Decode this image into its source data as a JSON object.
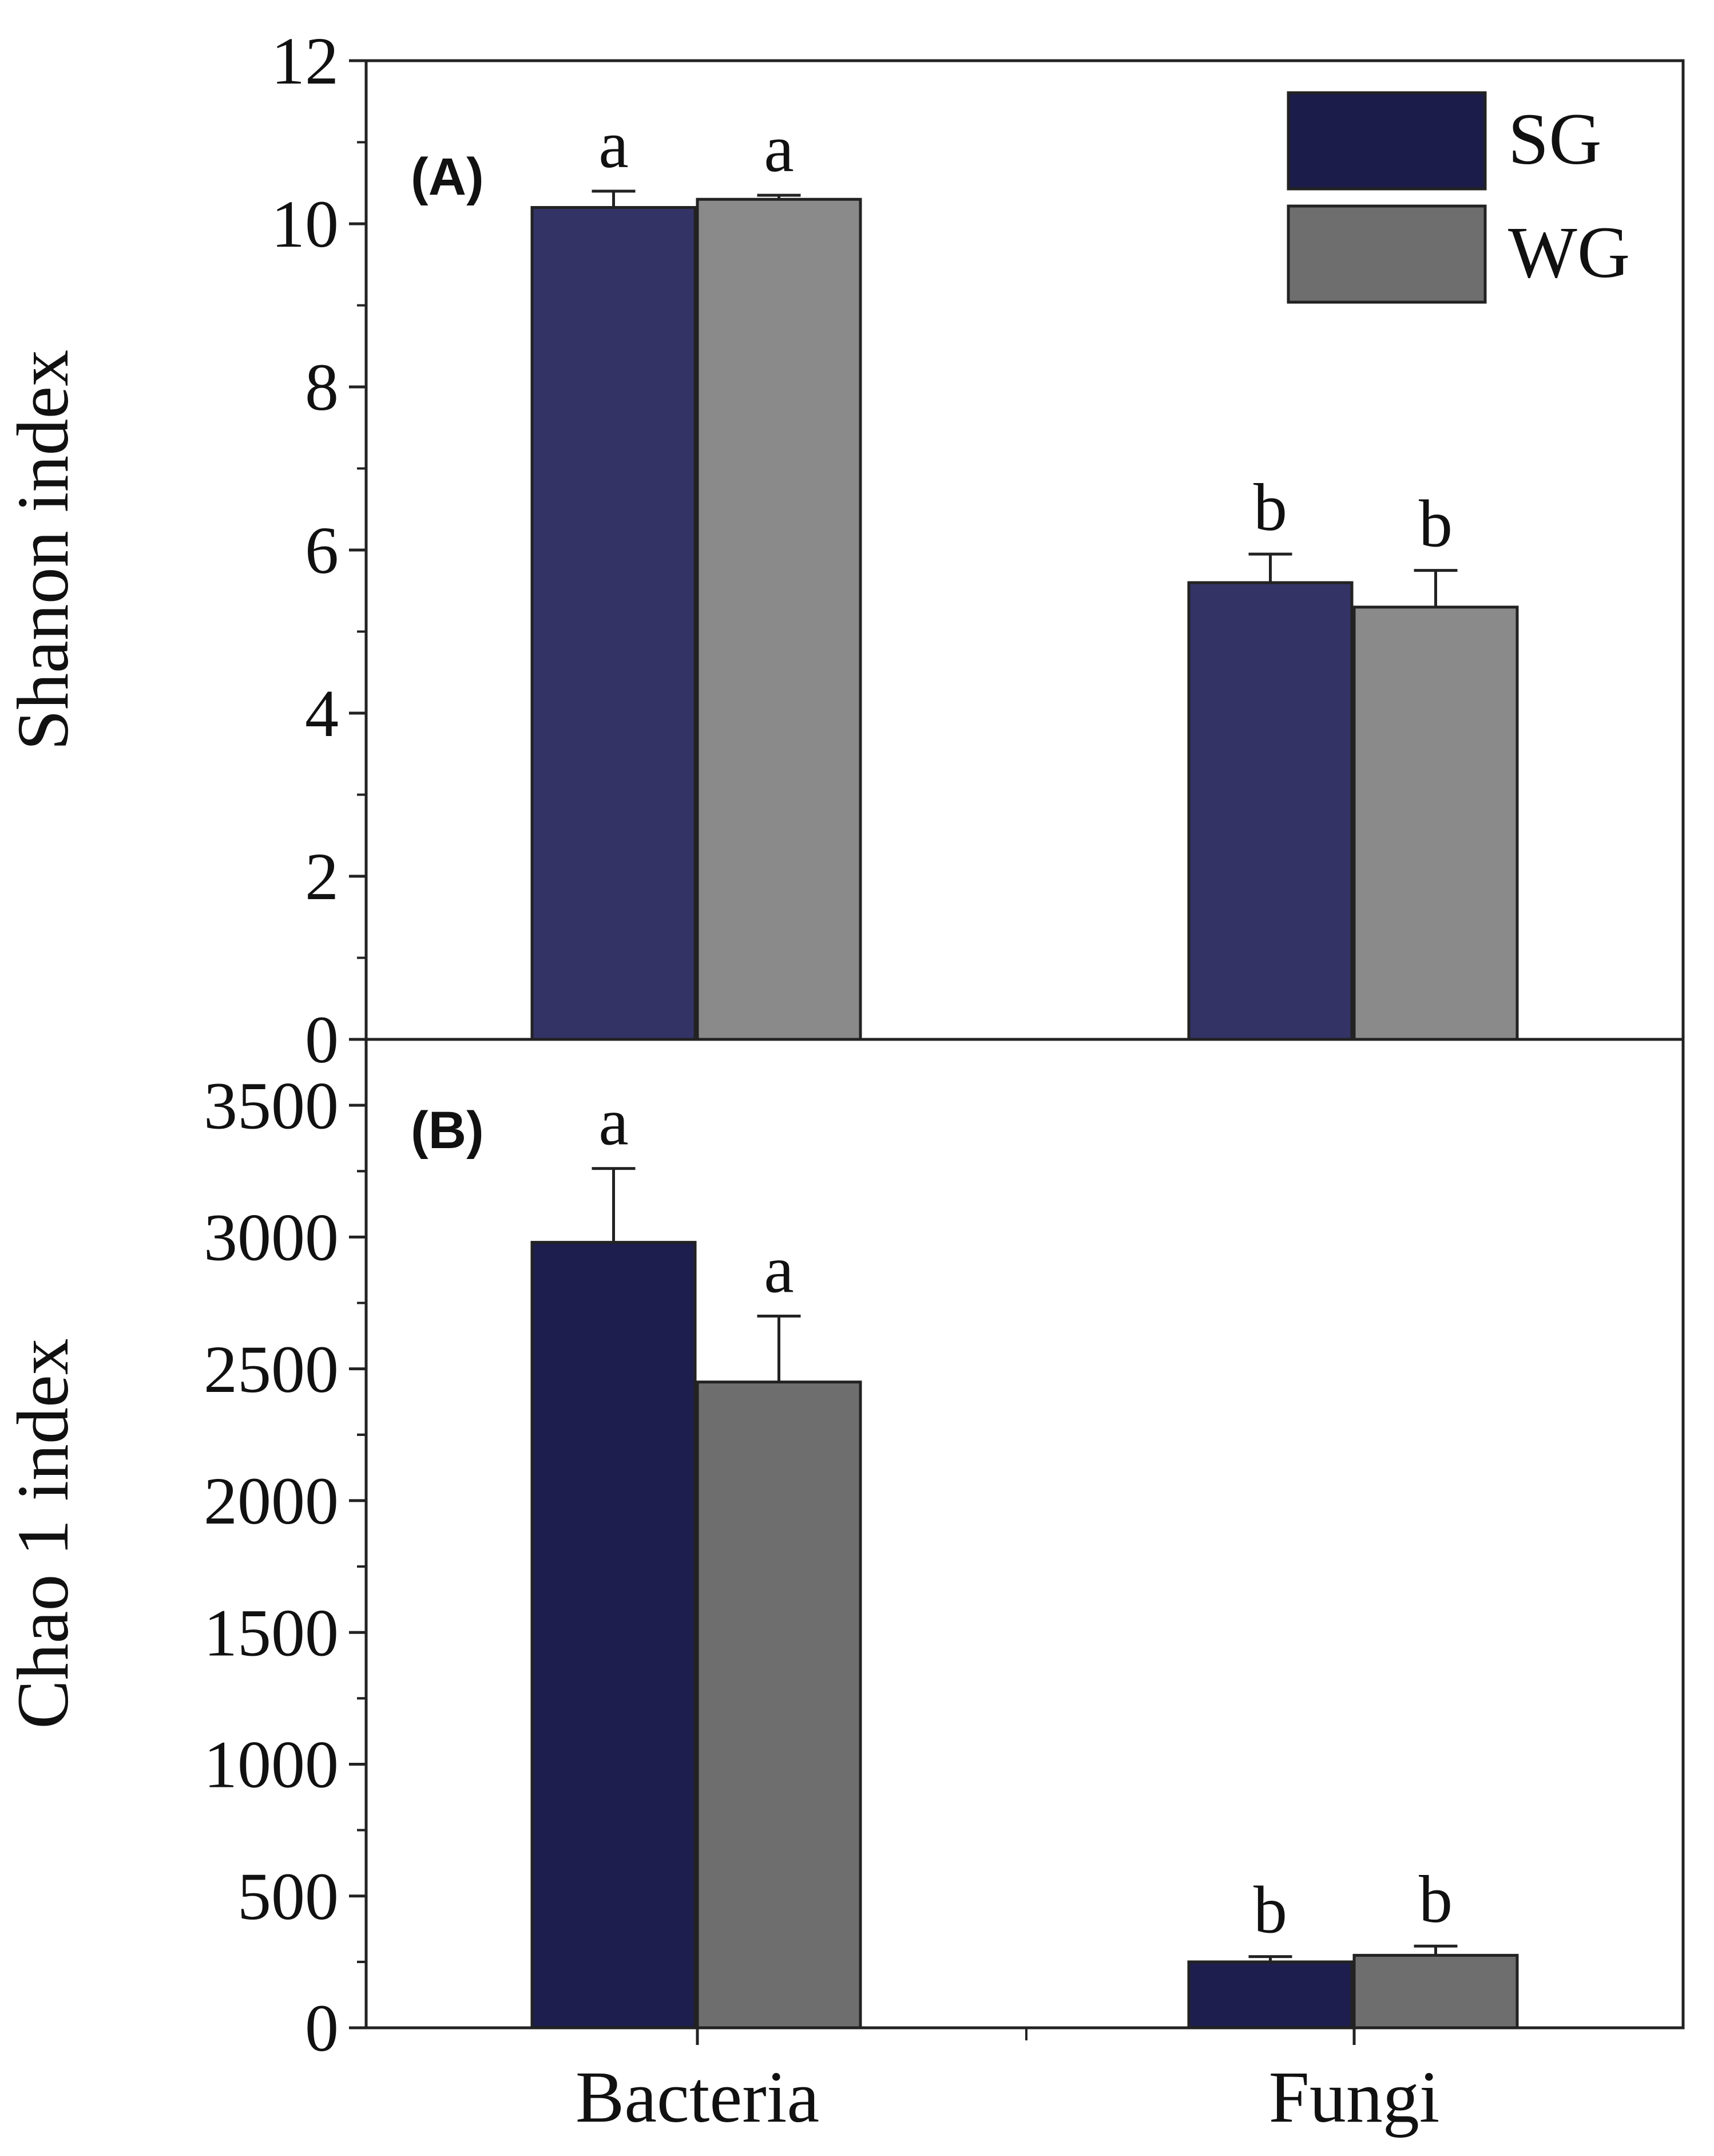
{
  "chart_data": [
    {
      "panel": "A",
      "panel_label": "(A)",
      "type": "bar",
      "ylabel": "Shanon index",
      "ylim": [
        0,
        12
      ],
      "yticks": [
        0,
        2,
        4,
        6,
        8,
        10,
        12
      ],
      "categories": [
        "Bacteria",
        "Fungi"
      ],
      "series": [
        {
          "name": "SG",
          "color": "#333366",
          "values": [
            10.2,
            5.6
          ],
          "errors": [
            0.2,
            0.35
          ],
          "letters": [
            "a",
            "b"
          ]
        },
        {
          "name": "WG",
          "color": "#8a8a8a",
          "values": [
            10.3,
            5.3
          ],
          "errors": [
            0.05,
            0.45
          ],
          "letters": [
            "a",
            "b"
          ]
        }
      ],
      "legend": {
        "position": "top-right",
        "entries": [
          "SG",
          "WG"
        ],
        "colors": [
          "#1c1c4a",
          "#6e6e6e"
        ]
      }
    },
    {
      "panel": "B",
      "panel_label": "(B)",
      "type": "bar",
      "ylabel": "Chao 1 index",
      "xlabel": "",
      "ylim": [
        0,
        3750
      ],
      "yticks": [
        0,
        500,
        1000,
        1500,
        2000,
        2500,
        3000,
        3500
      ],
      "categories": [
        "Bacteria",
        "Fungi"
      ],
      "series": [
        {
          "name": "SG",
          "color": "#1e1e4e",
          "values": [
            2980,
            250
          ],
          "errors": [
            280,
            20
          ],
          "letters": [
            "a",
            "b"
          ]
        },
        {
          "name": "WG",
          "color": "#6e6e6e",
          "values": [
            2450,
            275
          ],
          "errors": [
            250,
            35
          ],
          "letters": [
            "a",
            "b"
          ]
        }
      ]
    }
  ]
}
